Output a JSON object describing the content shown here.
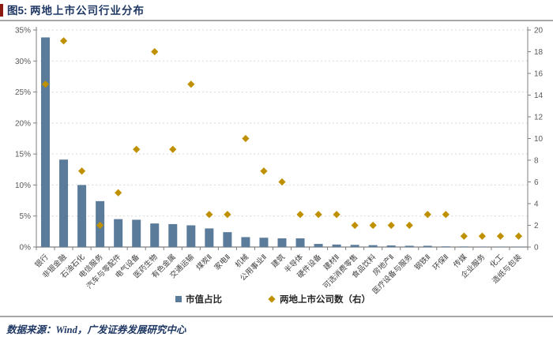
{
  "header": {
    "figure_label": "图5:",
    "title": "两地上市公司行业分布"
  },
  "footer": {
    "source": "数据来源：Wind，广发证券发展研究中心"
  },
  "chart_data": {
    "type": "bar",
    "subtype": "bar+scatter dual-axis combo",
    "title": "两地上市公司行业分布",
    "categories": [
      "银行",
      "非银金融",
      "石油石化",
      "电信服务",
      "汽车与零配件",
      "电气设备",
      "医药生物",
      "有色金属",
      "交通运输",
      "煤炭Ⅱ",
      "家电Ⅱ",
      "机械",
      "公用事业Ⅱ",
      "建筑",
      "半导体",
      "硬件设备",
      "建材Ⅱ",
      "可选消费零售",
      "食品饮料",
      "房地产Ⅱ",
      "医疗设备与服务",
      "钢铁Ⅱ",
      "环保Ⅱ",
      "传媒",
      "企业服务",
      "化工",
      "造纸与包装"
    ],
    "series": [
      {
        "name": "市值占比",
        "type": "bar",
        "axis": "left",
        "unit": "%",
        "values": [
          33.8,
          14.1,
          10.0,
          7.4,
          4.5,
          4.4,
          3.8,
          3.7,
          3.5,
          3.0,
          2.4,
          1.6,
          1.5,
          1.4,
          1.4,
          0.5,
          0.4,
          0.35,
          0.3,
          0.25,
          0.2,
          0.2,
          0.1,
          0.08,
          0.06,
          0.05,
          0.04
        ]
      },
      {
        "name": "两地上市公司数（右）",
        "type": "scatter-diamond",
        "axis": "right",
        "values": [
          15,
          19,
          7,
          2,
          5,
          9,
          18,
          9,
          15,
          3,
          3,
          10,
          7,
          6,
          3,
          3,
          3,
          2,
          2,
          2,
          2,
          3,
          3,
          1,
          1,
          1,
          1
        ]
      }
    ],
    "left_axis": {
      "min": 0,
      "max": 35,
      "step": 5,
      "tick_labels": [
        "0%",
        "5%",
        "10%",
        "15%",
        "20%",
        "25%",
        "30%",
        "35%"
      ]
    },
    "right_axis": {
      "min": 0,
      "max": 20,
      "step": 2,
      "tick_labels": [
        "0",
        "2",
        "4",
        "6",
        "8",
        "10",
        "12",
        "14",
        "16",
        "18",
        "20"
      ]
    },
    "grid": "horizontal-dashed",
    "legend_position": "bottom",
    "colors": {
      "bar": "#5b7b9b",
      "marker": "#bf9000",
      "gridline": "#d9d9d9",
      "axis_line": "#7f7f7f",
      "axis_text": "#595959",
      "x_label_text": "#3f3f3f",
      "legend_text": "#262626",
      "title_text": "#1f3864",
      "accent": "#8b1a10",
      "rule": "#a6a6a6"
    }
  }
}
